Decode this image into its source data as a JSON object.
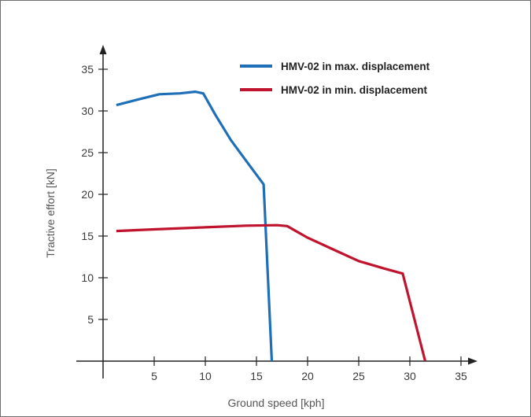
{
  "chart_data": {
    "type": "line",
    "xlabel": "Ground speed [kph]",
    "ylabel": "Tractive effort [kN]",
    "xlim": [
      0,
      37
    ],
    "ylim": [
      0,
      37
    ],
    "x_ticks": [
      5,
      10,
      15,
      20,
      25,
      30,
      35
    ],
    "y_ticks": [
      5,
      10,
      15,
      20,
      25,
      30,
      35
    ],
    "grid": false,
    "legend": "top-right",
    "series": [
      {
        "name": "HMV-02 in max. displacement",
        "color": "#1f6fb8",
        "points": [
          [
            1.3,
            30.7
          ],
          [
            3.5,
            31.4
          ],
          [
            5.5,
            32.0
          ],
          [
            7.5,
            32.1
          ],
          [
            9.0,
            32.3
          ],
          [
            9.8,
            32.1
          ],
          [
            11.0,
            29.5
          ],
          [
            12.5,
            26.5
          ],
          [
            14.0,
            24.0
          ],
          [
            15.7,
            21.2
          ],
          [
            16.5,
            0
          ]
        ]
      },
      {
        "name": "HMV-02 in min. displacement",
        "color": "#c0142e",
        "points": [
          [
            1.3,
            15.6
          ],
          [
            5.0,
            15.8
          ],
          [
            10.0,
            16.05
          ],
          [
            14.0,
            16.25
          ],
          [
            17.0,
            16.3
          ],
          [
            18.0,
            16.2
          ],
          [
            20.0,
            14.8
          ],
          [
            22.5,
            13.4
          ],
          [
            25.0,
            12.0
          ],
          [
            27.5,
            11.1
          ],
          [
            29.3,
            10.5
          ],
          [
            31.5,
            0
          ]
        ]
      }
    ]
  }
}
